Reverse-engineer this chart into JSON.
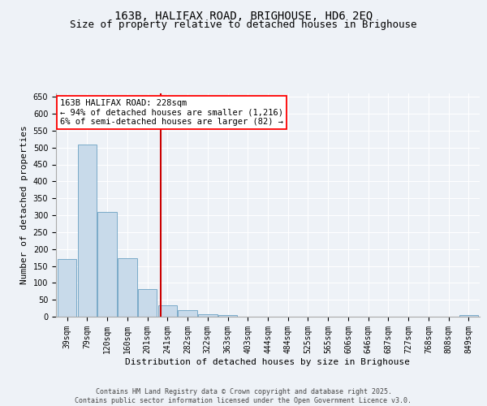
{
  "title": "163B, HALIFAX ROAD, BRIGHOUSE, HD6 2EQ",
  "subtitle": "Size of property relative to detached houses in Brighouse",
  "xlabel": "Distribution of detached houses by size in Brighouse",
  "ylabel": "Number of detached properties",
  "bar_color": "#c8daea",
  "bar_edge_color": "#7aaac8",
  "categories": [
    "39sqm",
    "79sqm",
    "120sqm",
    "160sqm",
    "201sqm",
    "241sqm",
    "282sqm",
    "322sqm",
    "363sqm",
    "403sqm",
    "444sqm",
    "484sqm",
    "525sqm",
    "565sqm",
    "606sqm",
    "646sqm",
    "687sqm",
    "727sqm",
    "768sqm",
    "808sqm",
    "849sqm"
  ],
  "values": [
    170,
    510,
    310,
    172,
    82,
    33,
    20,
    7,
    6,
    0,
    0,
    0,
    0,
    0,
    0,
    0,
    0,
    0,
    0,
    0,
    5
  ],
  "vline_index": 4.68,
  "vline_color": "#cc0000",
  "annotation_line1": "163B HALIFAX ROAD: 228sqm",
  "annotation_line2": "← 94% of detached houses are smaller (1,216)",
  "annotation_line3": "6% of semi-detached houses are larger (82) →",
  "ylim": [
    0,
    660
  ],
  "yticks": [
    0,
    50,
    100,
    150,
    200,
    250,
    300,
    350,
    400,
    450,
    500,
    550,
    600,
    650
  ],
  "background_color": "#eef2f7",
  "grid_color": "#ffffff",
  "footer_text": "Contains HM Land Registry data © Crown copyright and database right 2025.\nContains public sector information licensed under the Open Government Licence v3.0.",
  "title_fontsize": 10,
  "subtitle_fontsize": 9,
  "axis_label_fontsize": 8,
  "tick_fontsize": 7,
  "annotation_fontsize": 7.5,
  "footer_fontsize": 6
}
